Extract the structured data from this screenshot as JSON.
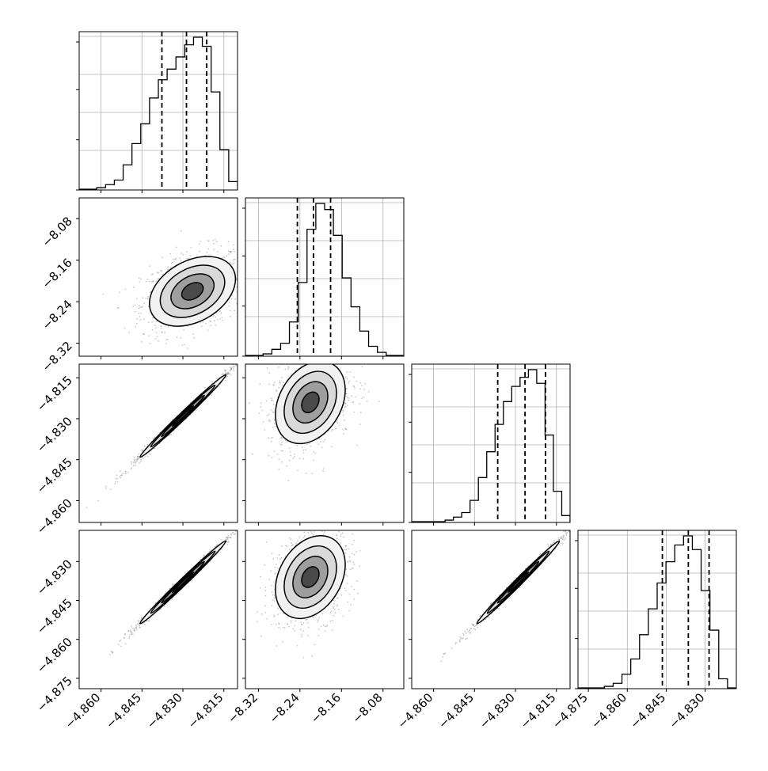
{
  "chart_data": {
    "type": "corner",
    "parameters": [
      {
        "range": [
          -4.868,
          -4.81
        ],
        "ticks": [
          -4.86,
          -4.845,
          -4.83,
          -4.815
        ],
        "tick_labels": [
          "−4.860",
          "−4.845",
          "−4.830",
          "−4.815"
        ]
      },
      {
        "range": [
          -8.345,
          -8.04
        ],
        "ticks": [
          -8.32,
          -8.24,
          -8.16,
          -8.08
        ],
        "tick_labels": [
          "−8.32",
          "−8.24",
          "−8.16",
          "−8.08"
        ]
      },
      {
        "range": [
          -4.868,
          -4.81
        ],
        "ticks": [
          -4.86,
          -4.845,
          -4.83,
          -4.815
        ],
        "tick_labels": [
          "−4.860",
          "−4.845",
          "−4.830",
          "−4.815"
        ]
      },
      {
        "range": [
          -4.879,
          -4.818
        ],
        "ticks": [
          -4.875,
          -4.86,
          -4.845,
          -4.83
        ],
        "tick_labels": [
          "−4.875",
          "−4.860",
          "−4.845",
          "−4.830"
        ]
      }
    ],
    "histograms": [
      {
        "counts": [
          0.0,
          0.0,
          0.01,
          0.03,
          0.06,
          0.16,
          0.3,
          0.43,
          0.6,
          0.72,
          0.79,
          0.87,
          0.95,
          1.0,
          0.94,
          0.64,
          0.26,
          0.05
        ],
        "quantiles": [
          -4.8377,
          -4.8287,
          -4.8213
        ]
      },
      {
        "counts": [
          0.0,
          0.0,
          0.01,
          0.04,
          0.08,
          0.22,
          0.48,
          0.83,
          1.0,
          0.96,
          0.79,
          0.51,
          0.32,
          0.16,
          0.06,
          0.02,
          0.0,
          0.0
        ],
        "quantiles": [
          -8.245,
          -8.214,
          -8.181
        ]
      },
      {
        "counts": [
          0.0,
          0.0,
          0.0,
          0.0,
          0.01,
          0.03,
          0.06,
          0.14,
          0.29,
          0.46,
          0.64,
          0.79,
          0.89,
          0.95,
          1.0,
          0.91,
          0.57,
          0.2,
          0.04
        ],
        "quantiles": [
          -4.8365,
          -4.8265,
          -4.819
        ]
      },
      {
        "counts": [
          0.0,
          0.0,
          0.0,
          0.01,
          0.03,
          0.09,
          0.19,
          0.35,
          0.52,
          0.69,
          0.83,
          0.94,
          1.0,
          0.91,
          0.64,
          0.38,
          0.06,
          0.0
        ],
        "quantiles": [
          -4.8465,
          -4.8365,
          -4.8285
        ]
      }
    ],
    "pairs": [
      {
        "x": 0,
        "y": 1,
        "center": [
          -4.8265,
          -8.22
        ],
        "sigma": [
          0.0075,
          0.032
        ],
        "rho": 0.35
      },
      {
        "x": 0,
        "y": 2,
        "center": [
          -4.83,
          -4.829
        ],
        "sigma": [
          0.0075,
          0.0072
        ],
        "rho": 0.995
      },
      {
        "x": 1,
        "y": 2,
        "center": [
          -8.22,
          -4.824
        ],
        "sigma": [
          0.032,
          0.0072
        ],
        "rho": 0.3
      },
      {
        "x": 0,
        "y": 3,
        "center": [
          -4.83,
          -4.838
        ],
        "sigma": [
          0.0075,
          0.0076
        ],
        "rho": 0.995
      },
      {
        "x": 1,
        "y": 3,
        "center": [
          -8.22,
          -4.836
        ],
        "sigma": [
          0.032,
          0.0076
        ],
        "rho": 0.3
      },
      {
        "x": 2,
        "y": 3,
        "center": [
          -4.829,
          -4.838
        ],
        "sigma": [
          0.0072,
          0.0076
        ],
        "rho": 0.995
      }
    ],
    "contour_levels_sigma": [
      0.5,
      1.0,
      1.5,
      2.0
    ],
    "grid": true,
    "title": "",
    "xlabel": "",
    "ylabel": ""
  }
}
